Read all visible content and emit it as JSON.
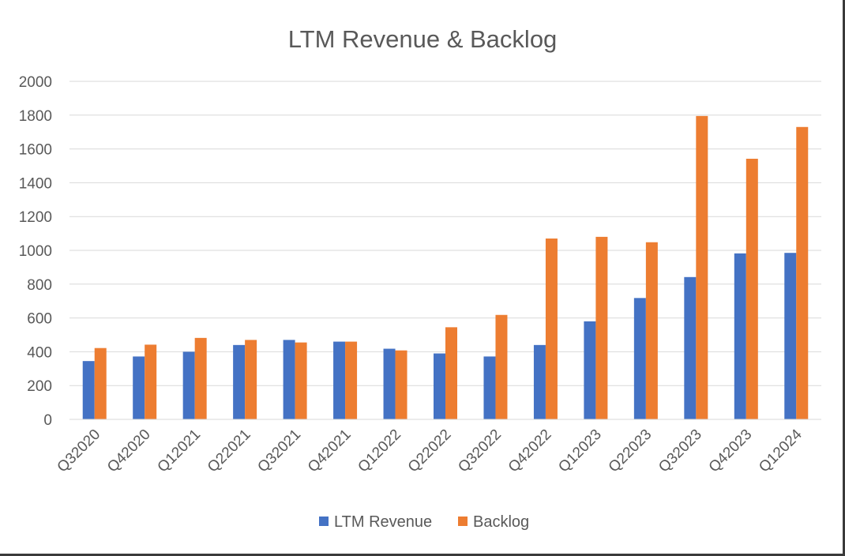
{
  "chart_data": {
    "type": "bar",
    "title": "LTM Revenue & Backlog",
    "xlabel": "",
    "ylabel": "",
    "categories": [
      "Q32020",
      "Q42020",
      "Q12021",
      "Q22021",
      "Q32021",
      "Q42021",
      "Q12022",
      "Q22022",
      "Q32022",
      "Q42022",
      "Q12023",
      "Q22023",
      "Q32023",
      "Q42023",
      "Q12024"
    ],
    "series": [
      {
        "name": "LTM Revenue",
        "color": "#4472c4",
        "values": [
          345,
          372,
          400,
          440,
          470,
          460,
          418,
          390,
          372,
          440,
          580,
          718,
          842,
          982,
          985
        ]
      },
      {
        "name": "Backlog",
        "color": "#ed7d31",
        "values": [
          422,
          442,
          482,
          470,
          455,
          460,
          408,
          545,
          618,
          1070,
          1080,
          1048,
          1795,
          1542,
          1730
        ]
      }
    ],
    "ylim": [
      0,
      2000
    ],
    "yticks": [
      "0",
      "200",
      "400",
      "600",
      "800",
      "1000",
      "1200",
      "1400",
      "1600",
      "1800",
      "2000"
    ],
    "grid": true,
    "legend_position": "bottom"
  }
}
